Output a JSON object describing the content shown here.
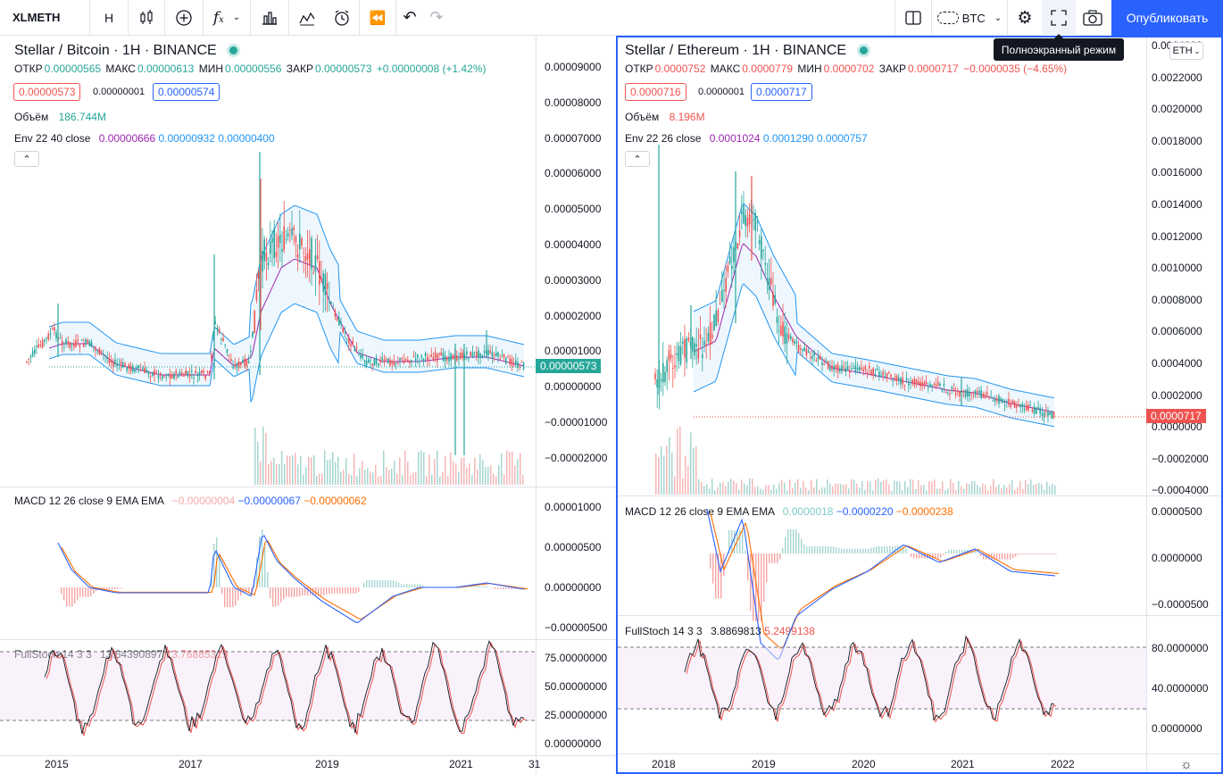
{
  "toolbar": {
    "symbol": "XLMETH",
    "interval": "H",
    "compare_currency": "BTC",
    "publish_label": "Опубликовать",
    "fullscreen_tooltip": "Полноэкранный режим"
  },
  "colors": {
    "accent": "#2962ff",
    "up": "#26a69a",
    "down": "#ef5350",
    "env_basis": "#9c27b0",
    "env_upper": "#2196f3",
    "macd_line": "#2962ff",
    "signal_line": "#ff6d00",
    "stoch_k": "#131722",
    "stoch_d": "#ef5350"
  },
  "left": {
    "title": "Stellar / Bitcoin · 1H · BINANCE",
    "ohlc": {
      "open_label": "ОТКР",
      "open": "0.00000565",
      "high_label": "МАКС",
      "high": "0.00000613",
      "low_label": "МИН",
      "low": "0.00000556",
      "close_label": "ЗАКР",
      "close": "0.00000573",
      "change": "+0.00000008 (+1.42%)"
    },
    "bid": "0.00000573",
    "spread": "0.00000001",
    "ask": "0.00000574",
    "volume_label": "Объём",
    "volume": "186.744M",
    "env_label": "Env 22 40 close",
    "env_vals": [
      "0.00000666",
      "0.00000932",
      "0.00000400"
    ],
    "macd_label": "MACD 12 26 close 9 EMA EMA",
    "macd_vals": [
      "−0.00000004",
      "−0.00000067",
      "−0.00000062"
    ],
    "stoch_label": "FullStoch 14 3 3",
    "stoch_vals": [
      "13.64390897",
      "13.76885319"
    ],
    "last_price": "0.00000573",
    "price_axis": [
      "0.00009000",
      "0.00008000",
      "0.00007000",
      "0.00006000",
      "0.00005000",
      "0.00004000",
      "0.00003000",
      "0.00002000",
      "0.00001000",
      "0.00000000",
      "−0.00001000",
      "−0.00002000"
    ],
    "macd_axis": [
      "0.00001000",
      "0.00000500",
      "0.00000000",
      "−0.00000500"
    ],
    "stoch_axis": [
      "75.00000000",
      "50.00000000",
      "25.00000000",
      "0.00000000"
    ],
    "time_axis": [
      "2015",
      "2017",
      "2019",
      "2021",
      "31"
    ]
  },
  "right": {
    "title": "Stellar / Ethereum · 1H · BINANCE",
    "ohlc": {
      "open_label": "ОТКР",
      "open": "0.0000752",
      "high_label": "МАКС",
      "high": "0.0000779",
      "low_label": "МИН",
      "low": "0.0000702",
      "close_label": "ЗАКР",
      "close": "0.0000717",
      "change": "−0.0000035 (−4.65%)"
    },
    "bid": "0.0000716",
    "spread": "0.0000001",
    "ask": "0.0000717",
    "volume_label": "Объём",
    "volume": "8.196M",
    "env_label": "Env 22 26 close",
    "env_vals": [
      "0.0001024",
      "0.0001290",
      "0.0000757"
    ],
    "macd_label": "MACD 12 26 close 9 EMA EMA",
    "macd_vals": [
      "0.0000018",
      "−0.0000220",
      "−0.0000238"
    ],
    "stoch_label": "FullStoch 14 3 3",
    "stoch_vals": [
      "3.8869813",
      "5.2499138"
    ],
    "last_price": "0.0000717",
    "currency_select": "ETH",
    "price_axis": [
      "0.0024000",
      "0.0022000",
      "0.0020000",
      "0.0018000",
      "0.0016000",
      "0.0014000",
      "0.0012000",
      "0.0010000",
      "0.0008000",
      "0.0006000",
      "0.0004000",
      "0.0002000",
      "0.0000000",
      "−0.0002000",
      "−0.0004000"
    ],
    "macd_axis": [
      "0.0000500",
      "0.0000000",
      "−0.0000500"
    ],
    "stoch_axis": [
      "80.0000000",
      "40.0000000",
      "0.0000000"
    ],
    "time_axis": [
      "2018",
      "2019",
      "2020",
      "2021",
      "2022"
    ]
  }
}
